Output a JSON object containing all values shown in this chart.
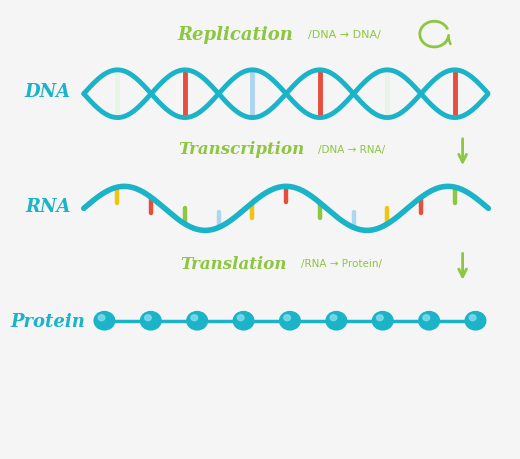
{
  "background_color": "#f5f5f5",
  "teal": "#1ab3c8",
  "dark_teal": "#0e8fa0",
  "green": "#8dc63f",
  "label_color": "#1ab3c8",
  "process_color": "#8dc63f",
  "bar_colors_dna": [
    "#e8f4e8",
    "#f1c40f",
    "#e74c3c",
    "#8dc63f",
    "#aed6f1",
    "#f1c40f",
    "#e74c3c",
    "#8dc63f"
  ],
  "bar_colors_rna": [
    "#aed6f1",
    "#f1c40f",
    "#e74c3c",
    "#8dc63f",
    "#aed6f1",
    "#f1c40f",
    "#e74c3c",
    "#8dc63f"
  ],
  "title": "Replication",
  "replication_subtitle": "/DNA → DNA/",
  "transcription_title": "Transcription",
  "transcription_subtitle": "/DNA → RNA/",
  "translation_title": "Translation",
  "translation_subtitle": "/RNA → Protein/",
  "dna_label": "DNA",
  "rna_label": "RNA",
  "protein_label": "Protein",
  "figsize": [
    5.2,
    4.6
  ],
  "dpi": 100
}
